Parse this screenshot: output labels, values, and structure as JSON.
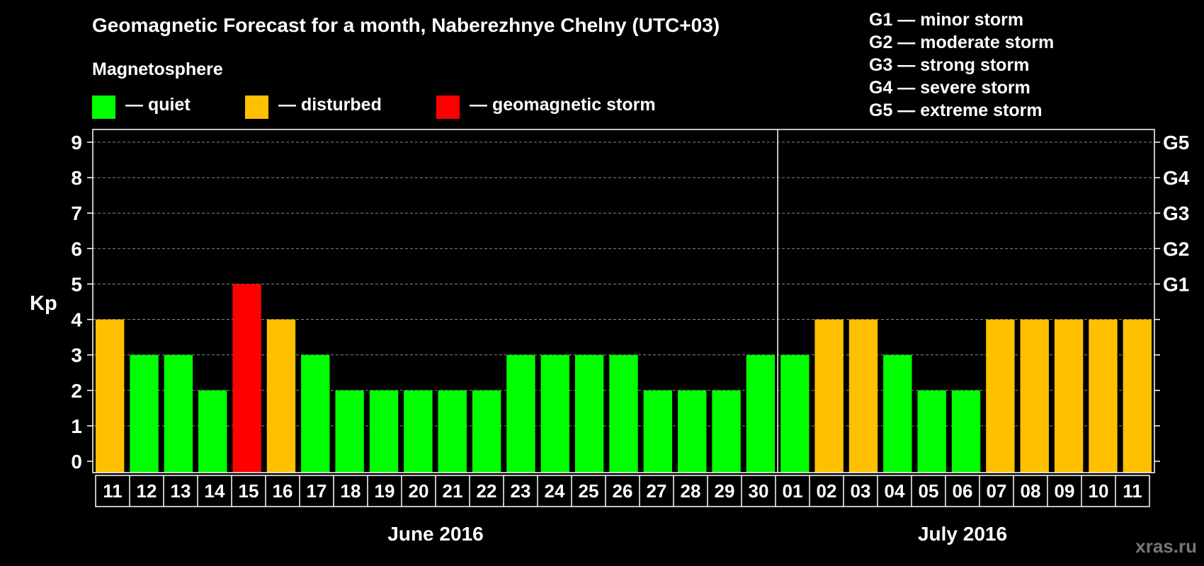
{
  "title": "Geomagnetic Forecast for a month, Naberezhnye Chelny (UTC+03)",
  "legend": {
    "heading": "Magnetosphere",
    "items": [
      {
        "label": "— quiet",
        "color": "#00ff00"
      },
      {
        "label": "— disturbed",
        "color": "#ffc000"
      },
      {
        "label": "— geomagnetic storm",
        "color": "#ff0000"
      }
    ]
  },
  "storm_scale": [
    "G1 — minor storm",
    "G2 — moderate storm",
    "G3 — strong storm",
    "G4 — severe storm",
    "G5 — extreme storm"
  ],
  "watermark": "xras.ru",
  "chart_data": {
    "type": "bar",
    "title": "Geomagnetic Forecast for a month, Naberezhnye Chelny (UTC+03)",
    "ylabel": "Kp",
    "ylim": [
      0,
      9
    ],
    "yticks": [
      "0",
      "1",
      "2",
      "3",
      "4",
      "5",
      "6",
      "7",
      "8",
      "9"
    ],
    "right_axis_labels": [
      {
        "kp": 5,
        "label": "G1"
      },
      {
        "kp": 6,
        "label": "G2"
      },
      {
        "kp": 7,
        "label": "G3"
      },
      {
        "kp": 8,
        "label": "G4"
      },
      {
        "kp": 9,
        "label": "G5"
      }
    ],
    "categories": [
      "11",
      "12",
      "13",
      "14",
      "15",
      "16",
      "17",
      "18",
      "19",
      "20",
      "21",
      "22",
      "23",
      "24",
      "25",
      "26",
      "27",
      "28",
      "29",
      "30",
      "01",
      "02",
      "03",
      "04",
      "05",
      "06",
      "07",
      "08",
      "09",
      "10",
      "11"
    ],
    "values": [
      4,
      3,
      3,
      2,
      5,
      4,
      3,
      2,
      2,
      2,
      2,
      2,
      3,
      3,
      3,
      3,
      2,
      2,
      2,
      3,
      3,
      4,
      4,
      3,
      2,
      2,
      4,
      4,
      4,
      4,
      4
    ],
    "status": [
      "disturbed",
      "quiet",
      "quiet",
      "quiet",
      "storm",
      "disturbed",
      "quiet",
      "quiet",
      "quiet",
      "quiet",
      "quiet",
      "quiet",
      "quiet",
      "quiet",
      "quiet",
      "quiet",
      "quiet",
      "quiet",
      "quiet",
      "quiet",
      "quiet",
      "disturbed",
      "disturbed",
      "quiet",
      "quiet",
      "quiet",
      "disturbed",
      "disturbed",
      "disturbed",
      "disturbed",
      "disturbed"
    ],
    "status_colors": {
      "quiet": "#00ff00",
      "disturbed": "#ffc000",
      "storm": "#ff0000"
    },
    "months": [
      {
        "label": "June 2016",
        "start_index": 0,
        "end_index": 19
      },
      {
        "label": "July 2016",
        "start_index": 20,
        "end_index": 30
      }
    ],
    "month_divider_after_index": 19,
    "grid": "dashed horizontal at each Kp"
  }
}
